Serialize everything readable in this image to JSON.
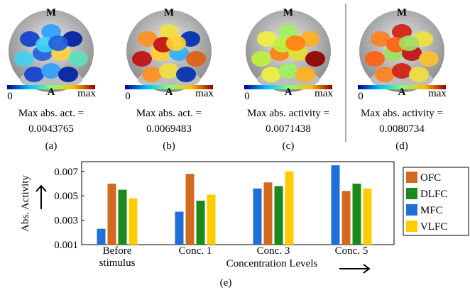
{
  "panels": [
    {
      "top_label": "M",
      "bottom_label": "A",
      "scale_min": "0",
      "scale_max": "max",
      "caption": "Max abs. act. =",
      "value": 0.0043765,
      "tag": "(a)"
    },
    {
      "top_label": "M",
      "bottom_label": "A",
      "scale_min": "0",
      "scale_max": "max",
      "caption": "Max abs. act. =",
      "value": 0.0069483,
      "tag": "(b)"
    },
    {
      "top_label": "M",
      "bottom_label": "A",
      "scale_min": "0",
      "scale_max": "max",
      "caption": "Max abs. activity =",
      "value": 0.0071438,
      "tag": "(c)"
    },
    {
      "top_label": "M",
      "bottom_label": "A",
      "scale_min": "0",
      "scale_max": "max",
      "caption": "Max abs. activity =",
      "value": 0.0080734,
      "tag": "(d)"
    }
  ],
  "chart_data": {
    "type": "bar",
    "tag": "(e)",
    "y_label": "Abs. Activity",
    "x_label": "Concentration Levels",
    "categories": [
      "Before stimulus",
      "Conc. 1",
      "Conc. 3",
      "Conc. 5"
    ],
    "series": [
      {
        "name": "OFC",
        "color": "#d2691e",
        "values": [
          0.006,
          0.0068,
          0.0061,
          0.0054
        ]
      },
      {
        "name": "DLFC",
        "color": "#1a8a1a",
        "values": [
          0.0055,
          0.0046,
          0.0058,
          0.006
        ]
      },
      {
        "name": "MFC",
        "color": "#1f6fd6",
        "values": [
          0.0023,
          0.0037,
          0.0056,
          0.0075
        ]
      },
      {
        "name": "VLFC",
        "color": "#ffcc00",
        "values": [
          0.0048,
          0.0051,
          0.007,
          0.0056
        ]
      }
    ],
    "ylim": [
      0.001,
      0.0078
    ],
    "yticks": [
      0.001,
      0.003,
      0.005,
      0.007
    ],
    "legend": "right"
  }
}
